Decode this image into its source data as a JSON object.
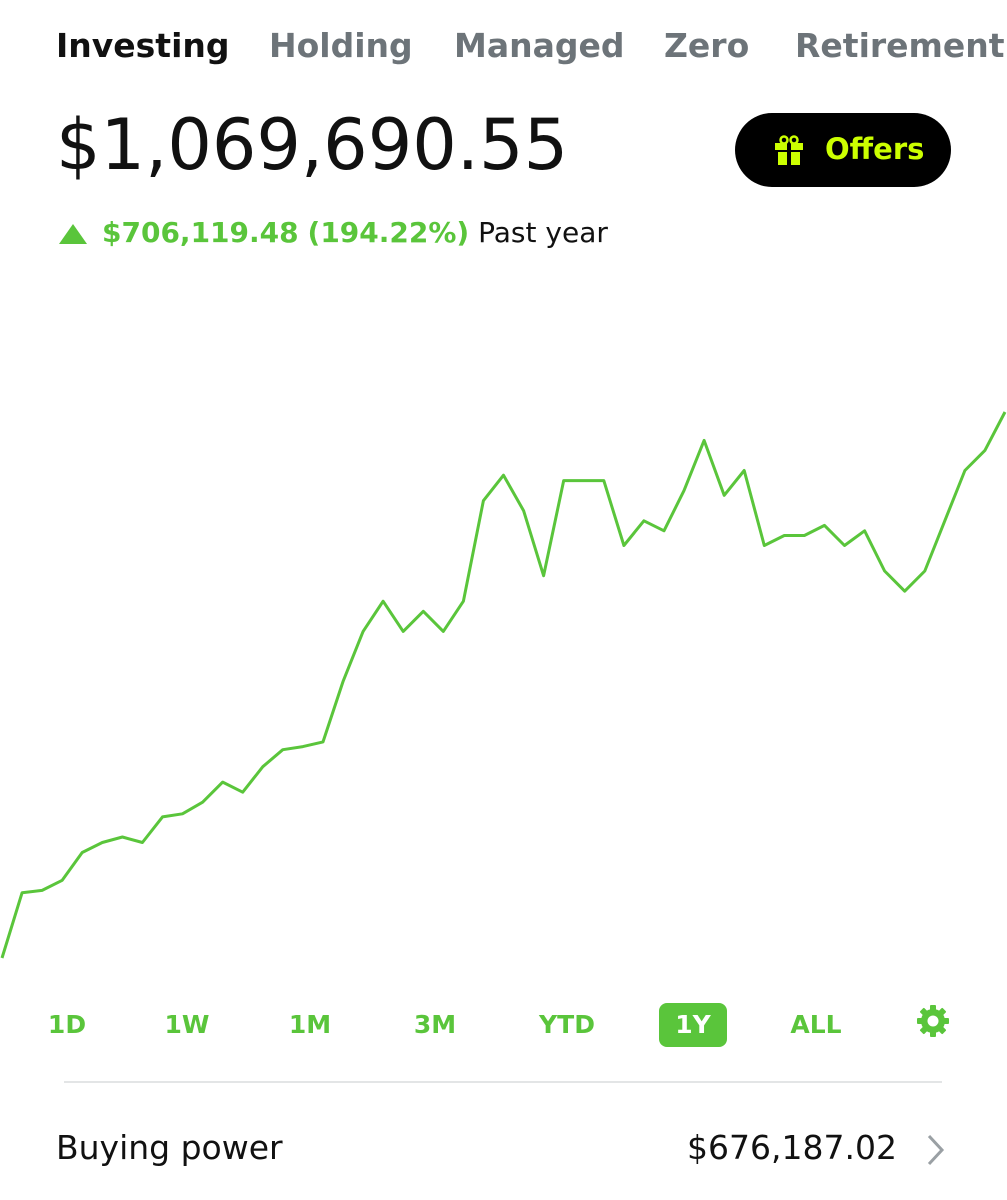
{
  "tabs": [
    "Investing",
    "Holding",
    "Managed",
    "Zero",
    "Retirement"
  ],
  "active_tab": 0,
  "balance": "$1,069,690.55",
  "offers": "Offers",
  "change": {
    "amount": "$706,119.48",
    "percent": "(194.22%)",
    "period": "Past year"
  },
  "chart_data": {
    "type": "line",
    "color": "#5ac53b",
    "values": [
      363571.07,
      448000,
      451000,
      464000,
      500000,
      513000,
      520000,
      513000,
      546000,
      550000,
      565000,
      591000,
      578000,
      611000,
      633000,
      637000,
      643000,
      721000,
      786000,
      825000,
      786000,
      812000,
      786000,
      825000,
      955000,
      988000,
      942000,
      858000,
      981000,
      981000,
      981000,
      897000,
      929000,
      916000,
      968000,
      1033000,
      962000,
      994000,
      897000,
      910000,
      910000,
      923000,
      897000,
      916000,
      864000,
      838000,
      864000,
      929000,
      994000,
      1020000,
      1069690.55
    ]
  },
  "ranges": [
    "1D",
    "1W",
    "1M",
    "3M",
    "YTD",
    "1Y",
    "ALL"
  ],
  "selected_range": 5,
  "buying_power": {
    "label": "Buying power",
    "value": "$676,187.02"
  }
}
